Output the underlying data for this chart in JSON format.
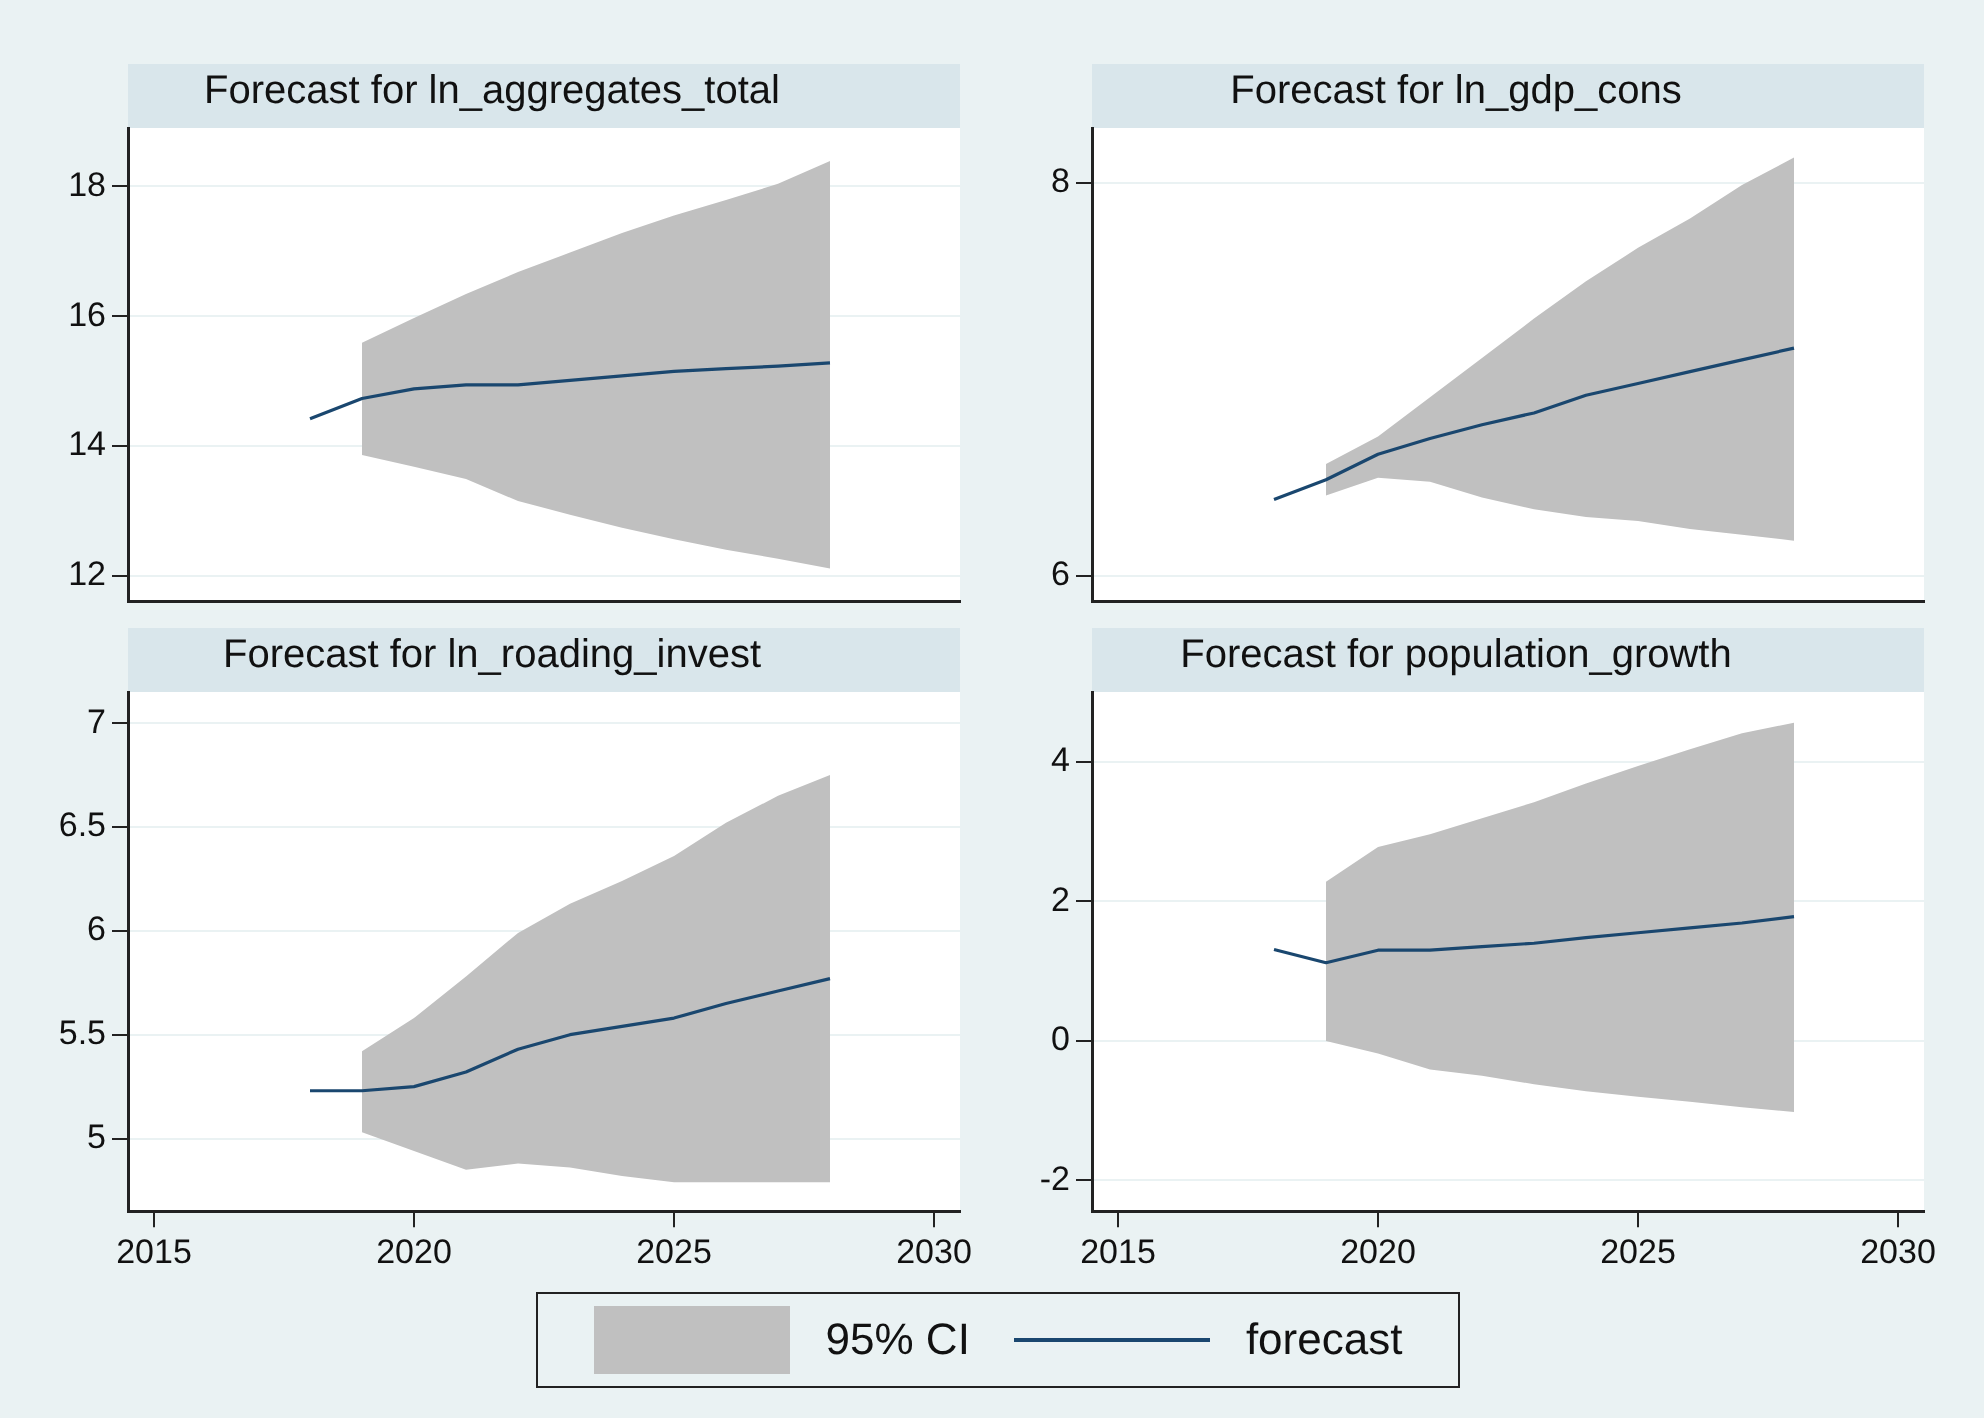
{
  "chart_data": [
    {
      "type": "line",
      "title": "Forecast for ln_aggregates_total",
      "xlim": [
        2014.5,
        2030.5
      ],
      "xticks": [
        2015,
        2020,
        2025,
        2030
      ],
      "ylim": [
        11.6,
        18.9
      ],
      "yticks": [
        12,
        14,
        16,
        18
      ],
      "grid": "y",
      "tick_labels": "y",
      "series": [
        {
          "color": "#1a476f",
          "x": [
            2018,
            2019,
            2020,
            2021,
            2022,
            2023,
            2024,
            2025,
            2026,
            2027,
            2028
          ],
          "values": [
            14.42,
            14.73,
            14.88,
            14.94,
            14.94,
            15.01,
            15.08,
            15.15,
            15.19,
            15.23,
            15.28
          ],
          "lower": [
            null,
            13.86,
            13.68,
            13.49,
            13.15,
            12.94,
            12.74,
            12.56,
            12.4,
            12.26,
            12.11
          ],
          "upper": [
            null,
            15.59,
            15.97,
            16.34,
            16.68,
            16.98,
            17.28,
            17.55,
            17.79,
            18.04,
            18.39
          ]
        }
      ]
    },
    {
      "type": "line",
      "title": "Forecast for ln_gdp_cons",
      "xlim": [
        2014.5,
        2030.5
      ],
      "xticks": [
        2015,
        2020,
        2025,
        2030
      ],
      "ylim": [
        5.87,
        8.28
      ],
      "yticks": [
        6,
        8
      ],
      "grid": "y",
      "tick_labels": "y",
      "series": [
        {
          "color": "#1a476f",
          "x": [
            2018,
            2019,
            2020,
            2021,
            2022,
            2023,
            2024,
            2025,
            2026,
            2027,
            2028
          ],
          "values": [
            6.39,
            6.49,
            6.62,
            6.7,
            6.77,
            6.83,
            6.92,
            6.98,
            7.04,
            7.1,
            7.16
          ],
          "lower": [
            null,
            6.41,
            6.5,
            6.48,
            6.4,
            6.34,
            6.3,
            6.28,
            6.24,
            6.21,
            6.18
          ],
          "upper": [
            null,
            6.57,
            6.71,
            6.91,
            7.11,
            7.31,
            7.5,
            7.67,
            7.82,
            7.99,
            8.13
          ]
        }
      ]
    },
    {
      "type": "line",
      "title": "Forecast for ln_roading_invest",
      "xlim": [
        2014.5,
        2030.5
      ],
      "xticks": [
        2015,
        2020,
        2025,
        2030
      ],
      "ylim": [
        4.65,
        7.15
      ],
      "yticks": [
        5,
        5.5,
        6,
        6.5,
        7
      ],
      "grid": "y",
      "series": [
        {
          "color": "#1a476f",
          "x": [
            2018,
            2019,
            2020,
            2021,
            2022,
            2023,
            2024,
            2025,
            2026,
            2027,
            2028
          ],
          "values": [
            5.23,
            5.23,
            5.25,
            5.32,
            5.43,
            5.5,
            5.54,
            5.58,
            5.65,
            5.71,
            5.77
          ],
          "lower": [
            null,
            5.03,
            4.94,
            4.85,
            4.88,
            4.86,
            4.82,
            4.79,
            4.79,
            4.79,
            4.79
          ],
          "upper": [
            null,
            5.42,
            5.58,
            5.78,
            5.99,
            6.13,
            6.24,
            6.36,
            6.52,
            6.65,
            6.75
          ]
        }
      ]
    },
    {
      "type": "line",
      "title": "Forecast for population_growth",
      "xlim": [
        2014.5,
        2030.5
      ],
      "xticks": [
        2015,
        2020,
        2025,
        2030
      ],
      "ylim": [
        -2.44,
        5
      ],
      "yticks": [
        -2,
        0,
        2,
        4
      ],
      "grid": "y",
      "legend": "bottom",
      "annotations": [
        "95% CI"
      ],
      "series": [
        {
          "name": "forecast",
          "color": "#1a476f",
          "x": [
            2018,
            2019,
            2020,
            2021,
            2022,
            2023,
            2024,
            2025,
            2026,
            2027,
            2028
          ],
          "values": [
            1.31,
            1.12,
            1.3,
            1.3,
            1.35,
            1.4,
            1.48,
            1.55,
            1.62,
            1.69,
            1.78
          ],
          "lower": [
            null,
            0,
            -0.18,
            -0.41,
            -0.5,
            -0.62,
            -0.72,
            -0.8,
            -0.87,
            -0.95,
            -1.02
          ],
          "upper": [
            null,
            2.28,
            2.78,
            2.96,
            3.19,
            3.42,
            3.69,
            3.94,
            4.18,
            4.41,
            4.56
          ]
        }
      ]
    }
  ]
}
